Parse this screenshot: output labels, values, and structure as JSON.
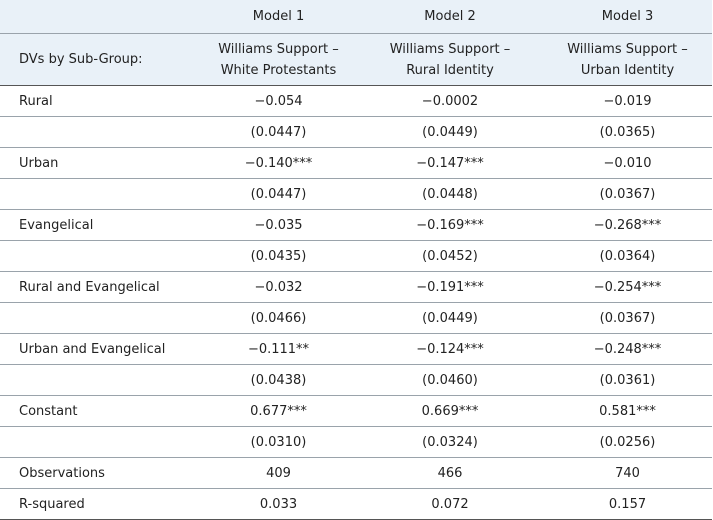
{
  "header": {
    "columns": [
      "Model 1",
      "Model 2",
      "Model 3"
    ],
    "row_label": "DVs by Sub-Group:",
    "subheaders": [
      [
        "Williams Support –",
        "White Protestants"
      ],
      [
        "Williams Support –",
        "Rural Identity"
      ],
      [
        "Williams Support –",
        "Urban Identity"
      ]
    ]
  },
  "table": {
    "rows": [
      {
        "label": "Rural",
        "values": [
          "−0.054",
          "−0.0002",
          "−0.019"
        ],
        "se": [
          "(0.0447)",
          "(0.0449)",
          "(0.0365)"
        ]
      },
      {
        "label": "Urban",
        "values": [
          "−0.140***",
          "−0.147***",
          "−0.010"
        ],
        "se": [
          "(0.0447)",
          "(0.0448)",
          "(0.0367)"
        ]
      },
      {
        "label": "Evangelical",
        "values": [
          "−0.035",
          "−0.169***",
          "−0.268***"
        ],
        "se": [
          "(0.0435)",
          "(0.0452)",
          "(0.0364)"
        ]
      },
      {
        "label": "Rural and Evangelical",
        "values": [
          "−0.032",
          "−0.191***",
          "−0.254***"
        ],
        "se": [
          "(0.0466)",
          "(0.0449)",
          "(0.0367)"
        ]
      },
      {
        "label": "Urban and Evangelical",
        "values": [
          "−0.111**",
          "−0.124***",
          "−0.248***"
        ],
        "se": [
          "(0.0438)",
          "(0.0460)",
          "(0.0361)"
        ]
      },
      {
        "label": "Constant",
        "values": [
          "0.677***",
          "0.669***",
          "0.581***"
        ],
        "se": [
          "(0.0310)",
          "(0.0324)",
          "(0.0256)"
        ]
      },
      {
        "label": "Observations",
        "values": [
          "409",
          "466",
          "740"
        ]
      },
      {
        "label": "R-squared",
        "values": [
          "0.033",
          "0.072",
          "0.157"
        ]
      }
    ]
  }
}
